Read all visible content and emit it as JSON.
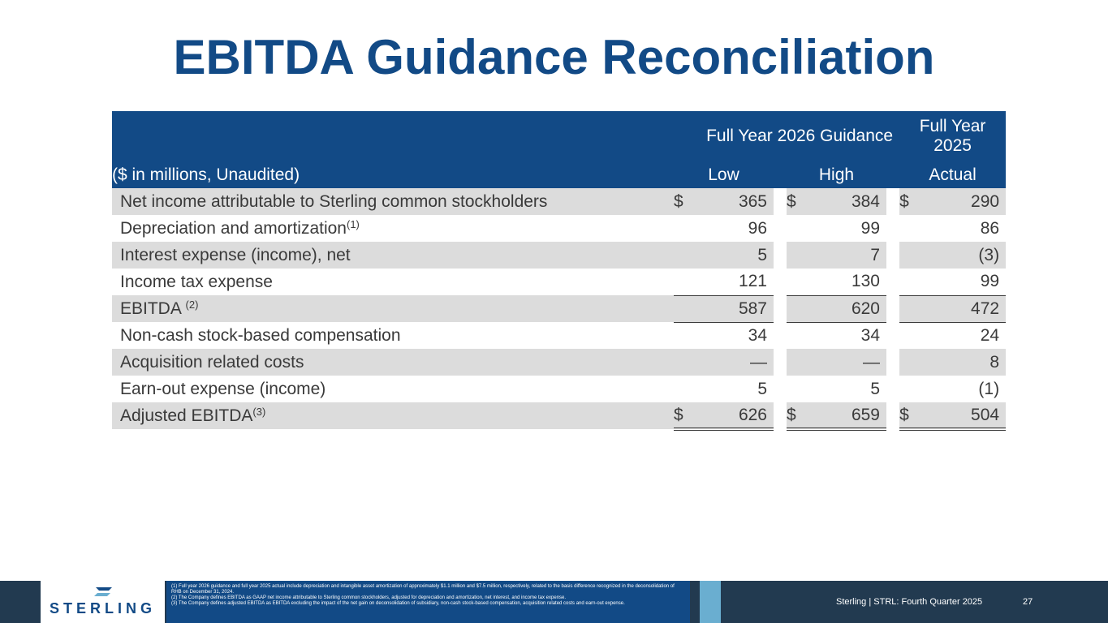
{
  "title": "EBITDA Guidance Reconciliation",
  "table": {
    "header_group": "Full Year 2026 Guidance",
    "header_fy": "Full Year 2025",
    "desc_header": "($ in millions, Unaudited)",
    "col_low": "Low",
    "col_high": "High",
    "col_actual": "Actual",
    "rows": [
      {
        "label": "Net income attributable to Sterling common stockholders",
        "sup": "",
        "d1": "$",
        "low": "365",
        "d2": "$",
        "high": "384",
        "d3": "$",
        "actual": "290"
      },
      {
        "label": "Depreciation and amortization",
        "sup": "(1)",
        "d1": "",
        "low": "96",
        "d2": "",
        "high": "99",
        "d3": "",
        "actual": "86"
      },
      {
        "label": "Interest expense (income), net",
        "sup": "",
        "d1": "",
        "low": "5",
        "d2": "",
        "high": "7",
        "d3": "",
        "actual": "(3)"
      },
      {
        "label": "Income tax expense",
        "sup": "",
        "d1": "",
        "low": "121",
        "d2": "",
        "high": "130",
        "d3": "",
        "actual": "99"
      },
      {
        "label": "EBITDA ",
        "sup": "(2)",
        "d1": "",
        "low": "587",
        "d2": "",
        "high": "620",
        "d3": "",
        "actual": "472"
      },
      {
        "label": "Non-cash stock-based compensation",
        "sup": "",
        "d1": "",
        "low": "34",
        "d2": "",
        "high": "34",
        "d3": "",
        "actual": "24"
      },
      {
        "label": "Acquisition related costs",
        "sup": "",
        "d1": "",
        "low": "—",
        "d2": "",
        "high": "—",
        "d3": "",
        "actual": "8"
      },
      {
        "label": "Earn-out expense (income)",
        "sup": "",
        "d1": "",
        "low": "5",
        "d2": "",
        "high": "5",
        "d3": "",
        "actual": "(1)"
      },
      {
        "label": "Adjusted EBITDA",
        "sup": "(3)",
        "d1": "$",
        "low": "626",
        "d2": "$",
        "high": "659",
        "d3": "$",
        "actual": "504"
      }
    ]
  },
  "footer": {
    "logo_text": "STERLING",
    "notes": [
      "(1)  Full year 2026 guidance and full year 2025 actual include depreciation and intangible asset amortization of approximately $1.1 million and $7.5 million, respectively, related to the basis difference recognized in the deconsolidation of RHB on December 31, 2024.",
      "(2)  The Company defines EBITDA as GAAP net income attributable to Sterling common stockholders, adjusted for depreciation and amortization, net interest, and income tax expense.",
      "(3)  The Company defines adjusted EBITDA as EBITDA excluding the impact of the net gain on deconsolidation of subsidiary, non-cash stock-based compensation, acquisition related costs and earn-out expense."
    ],
    "company_text": "Sterling | STRL:  Fourth Quarter 2025",
    "page_number": "27"
  },
  "colors": {
    "brand_blue": "#124a86",
    "footer_dark": "#223a50",
    "accent_teal": "#6aaed0",
    "row_shade": "#dcdcdc"
  }
}
